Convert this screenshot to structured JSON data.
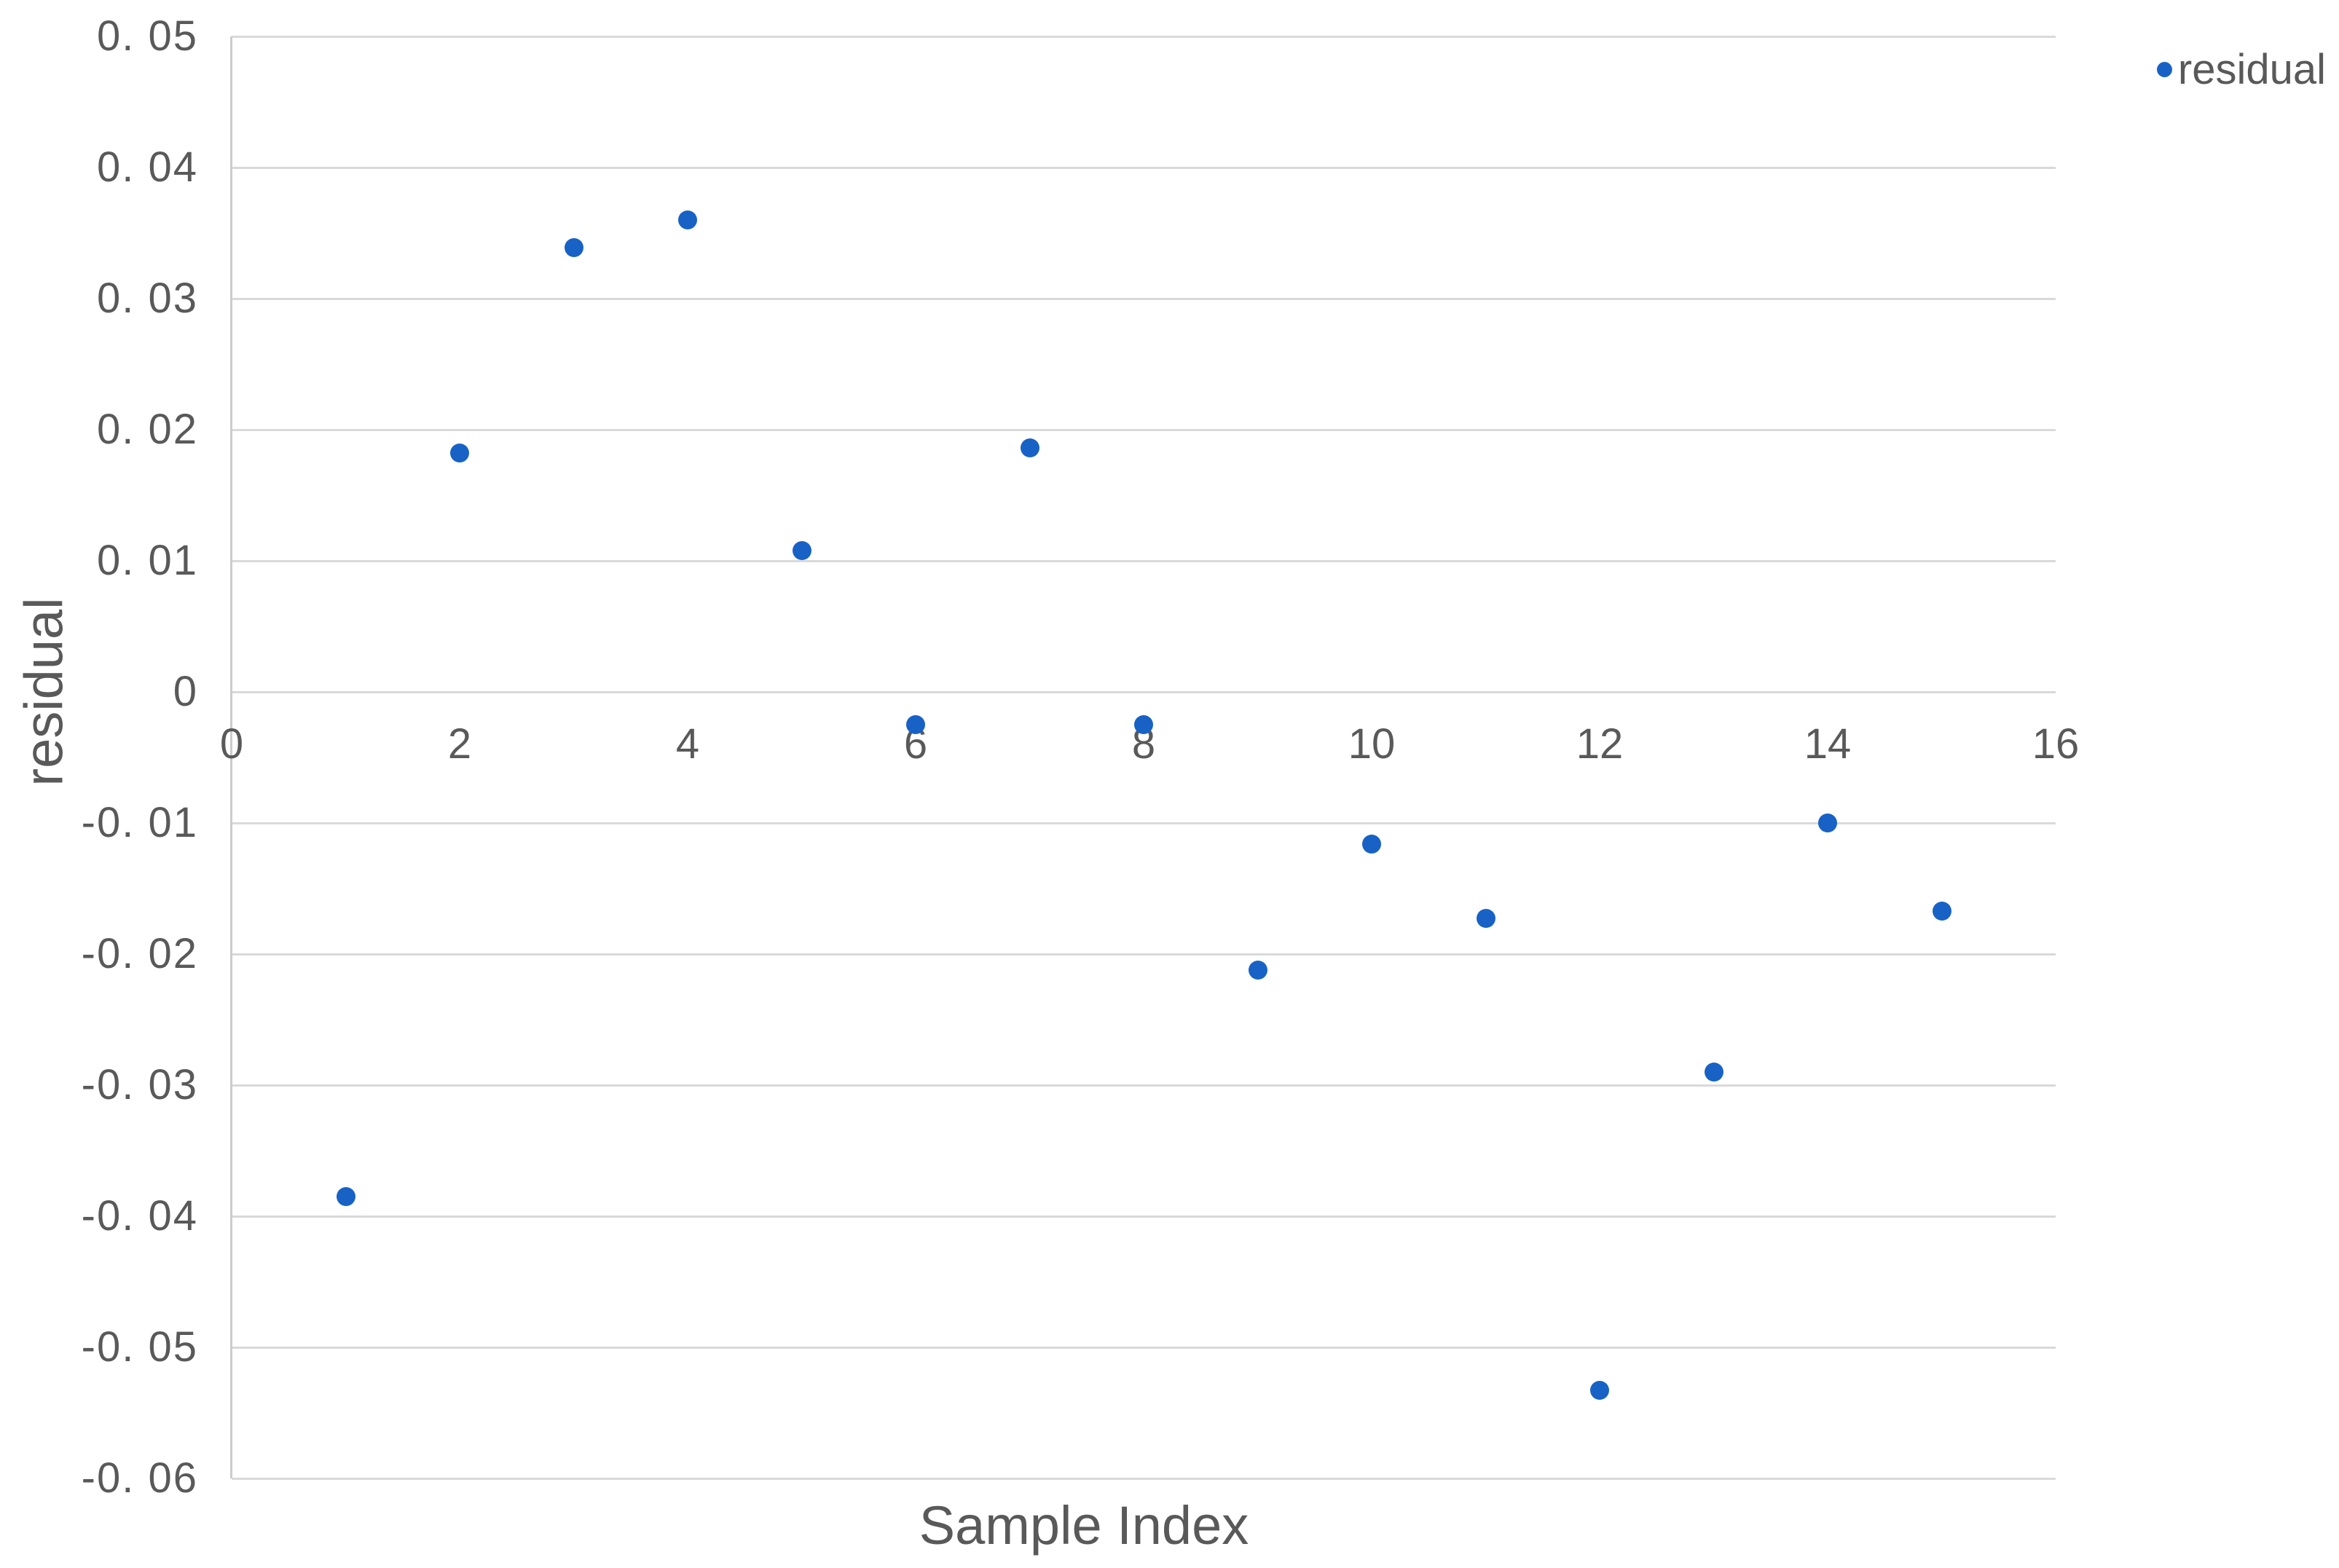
{
  "chart_data": {
    "type": "scatter",
    "title": "",
    "xlabel": "Sample Index",
    "ylabel": "residual",
    "legend": {
      "label": "residual",
      "position": "top-right"
    },
    "series": [
      {
        "name": "residual",
        "x": [
          1,
          2,
          3,
          4,
          5,
          6,
          7,
          8,
          9,
          10,
          11,
          12,
          13,
          14,
          15
        ],
        "y": [
          -0.0385,
          0.0182,
          0.0339,
          0.036,
          0.0108,
          -0.0025,
          0.0186,
          -0.0025,
          -0.0212,
          -0.0116,
          -0.0173,
          -0.0533,
          -0.029,
          -0.01,
          -0.0167
        ]
      }
    ],
    "xlim": [
      0,
      16
    ],
    "ylim": [
      -0.06,
      0.05
    ],
    "x_ticks": {
      "values": [
        0,
        2,
        4,
        6,
        8,
        10,
        12,
        14,
        16
      ],
      "labels": [
        "0",
        "2",
        "4",
        "6",
        "8",
        "10",
        "12",
        "14",
        "16"
      ]
    },
    "y_ticks": {
      "values": [
        0.05,
        0.04,
        0.03,
        0.02,
        0.01,
        0,
        -0.01,
        -0.02,
        -0.03,
        -0.04,
        -0.05,
        -0.06
      ],
      "labels": [
        "0. 05",
        "0. 04",
        "0. 03",
        "0. 02",
        "0. 01",
        "0",
        "-0. 01",
        "-0. 02",
        "-0. 03",
        "-0. 04",
        "-0. 05",
        "-0. 06"
      ]
    },
    "grid": "horizontal",
    "legend_marker": "circle",
    "colors": {
      "point": "#1862C6",
      "text": "#595959",
      "gridline": "#D9D9D9",
      "axis_line": "#CCCCCC",
      "background": "#FFFFFF"
    }
  }
}
